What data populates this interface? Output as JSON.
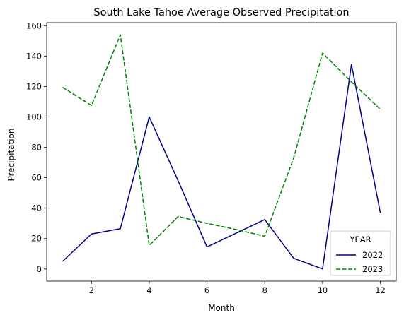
{
  "chart_data": {
    "type": "line",
    "title": "South Lake Tahoe Average Observed Precipitation",
    "xlabel": "Month",
    "ylabel": "Precipitation",
    "xlim": [
      0.45,
      12.55
    ],
    "ylim": [
      -8,
      162
    ],
    "xticks": [
      2,
      4,
      6,
      8,
      10,
      12
    ],
    "yticks": [
      0,
      20,
      40,
      60,
      80,
      100,
      120,
      140,
      160
    ],
    "grid": false,
    "legend": {
      "title": "YEAR",
      "placement": "lower-right"
    },
    "x": [
      1,
      2,
      3,
      4,
      5,
      6,
      7,
      8,
      9,
      10,
      11,
      12
    ],
    "series": [
      {
        "name": "2022",
        "color": "#00008b",
        "style": "solid",
        "values": [
          5,
          23,
          26.5,
          100,
          58,
          14.5,
          23.5,
          32.5,
          7,
          0,
          134.5,
          37
        ]
      },
      {
        "name": "2023",
        "color": "#008000",
        "style": "dashed",
        "values": [
          119.5,
          107.5,
          154,
          15.5,
          34.5,
          30,
          26,
          21.5,
          73,
          142,
          123,
          105
        ]
      }
    ]
  }
}
